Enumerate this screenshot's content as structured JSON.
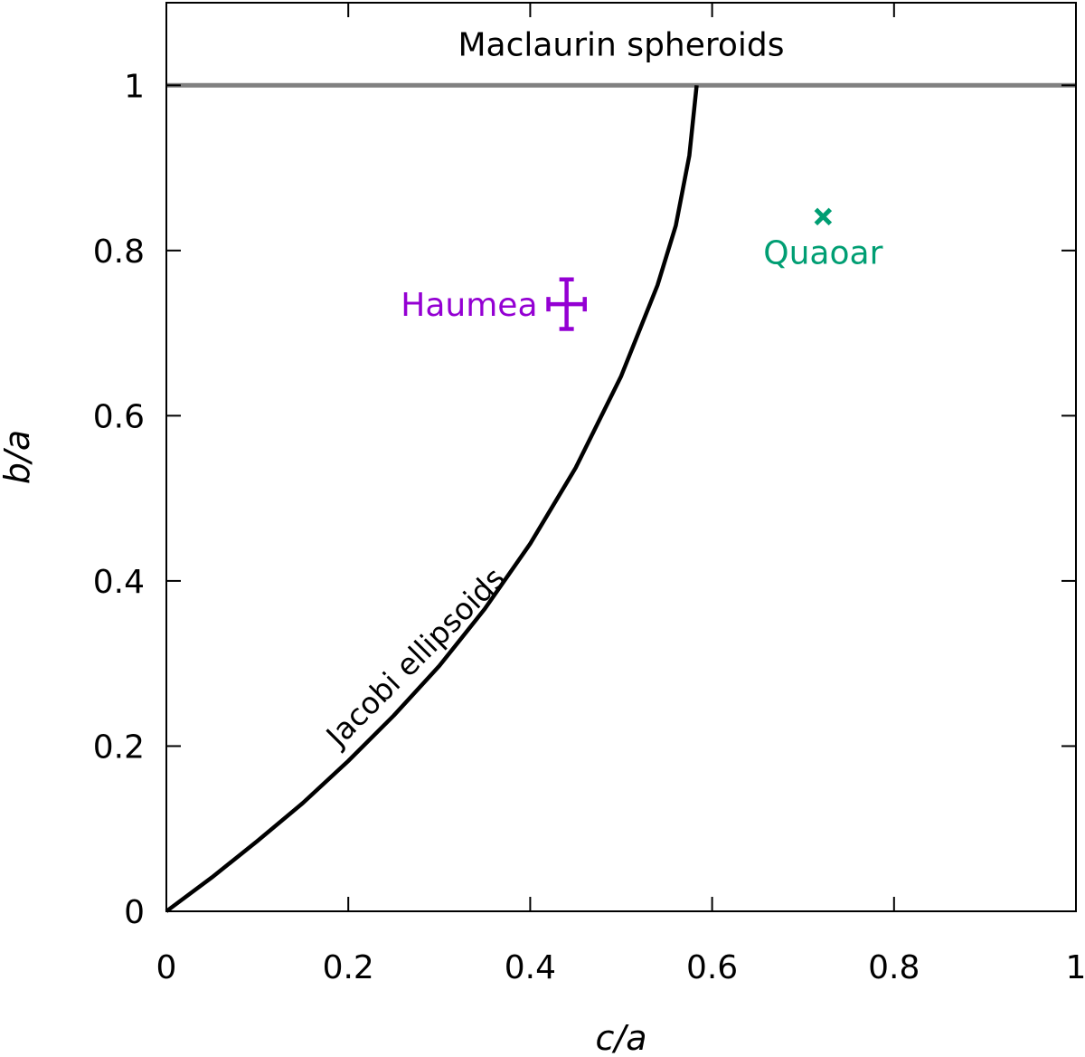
{
  "chart_data": {
    "type": "line",
    "title": "",
    "xlabel": "c/a",
    "ylabel": "b/a",
    "xlim": [
      0,
      1
    ],
    "ylim": [
      0,
      1.1
    ],
    "grid": false,
    "x_ticks": [
      "0",
      "0.2",
      "0.4",
      "0.6",
      "0.8",
      "1"
    ],
    "x_tick_values": [
      0,
      0.2,
      0.4,
      0.6,
      0.8,
      1
    ],
    "y_ticks": [
      "0",
      "0.2",
      "0.4",
      "0.6",
      "0.8",
      "1"
    ],
    "y_tick_values": [
      0,
      0.2,
      0.4,
      0.6,
      0.8,
      1
    ],
    "regions": [
      {
        "label": "Maclaurin spheroids",
        "y_from": 1.0,
        "y_to": 1.1,
        "boundary_color": "#808080"
      }
    ],
    "series": [
      {
        "name": "Jacobi ellipsoids",
        "color": "#000000",
        "points": [
          [
            0,
            0
          ],
          [
            0.05,
            0.041
          ],
          [
            0.1,
            0.085
          ],
          [
            0.15,
            0.131
          ],
          [
            0.2,
            0.182
          ],
          [
            0.25,
            0.237
          ],
          [
            0.3,
            0.297
          ],
          [
            0.35,
            0.366
          ],
          [
            0.4,
            0.445
          ],
          [
            0.45,
            0.537
          ],
          [
            0.5,
            0.648
          ],
          [
            0.54,
            0.758
          ],
          [
            0.56,
            0.83
          ],
          [
            0.575,
            0.915
          ],
          [
            0.583,
            1.0
          ]
        ]
      }
    ],
    "points": [
      {
        "label": "Haumea",
        "x": 0.44,
        "y": 0.735,
        "x_err": 0.02,
        "y_err": 0.03,
        "marker": "errorbar",
        "color": "#9400d3"
      },
      {
        "label": "Quaoar",
        "x": 0.722,
        "y": 0.841,
        "marker": "x",
        "color": "#009e73"
      }
    ]
  }
}
